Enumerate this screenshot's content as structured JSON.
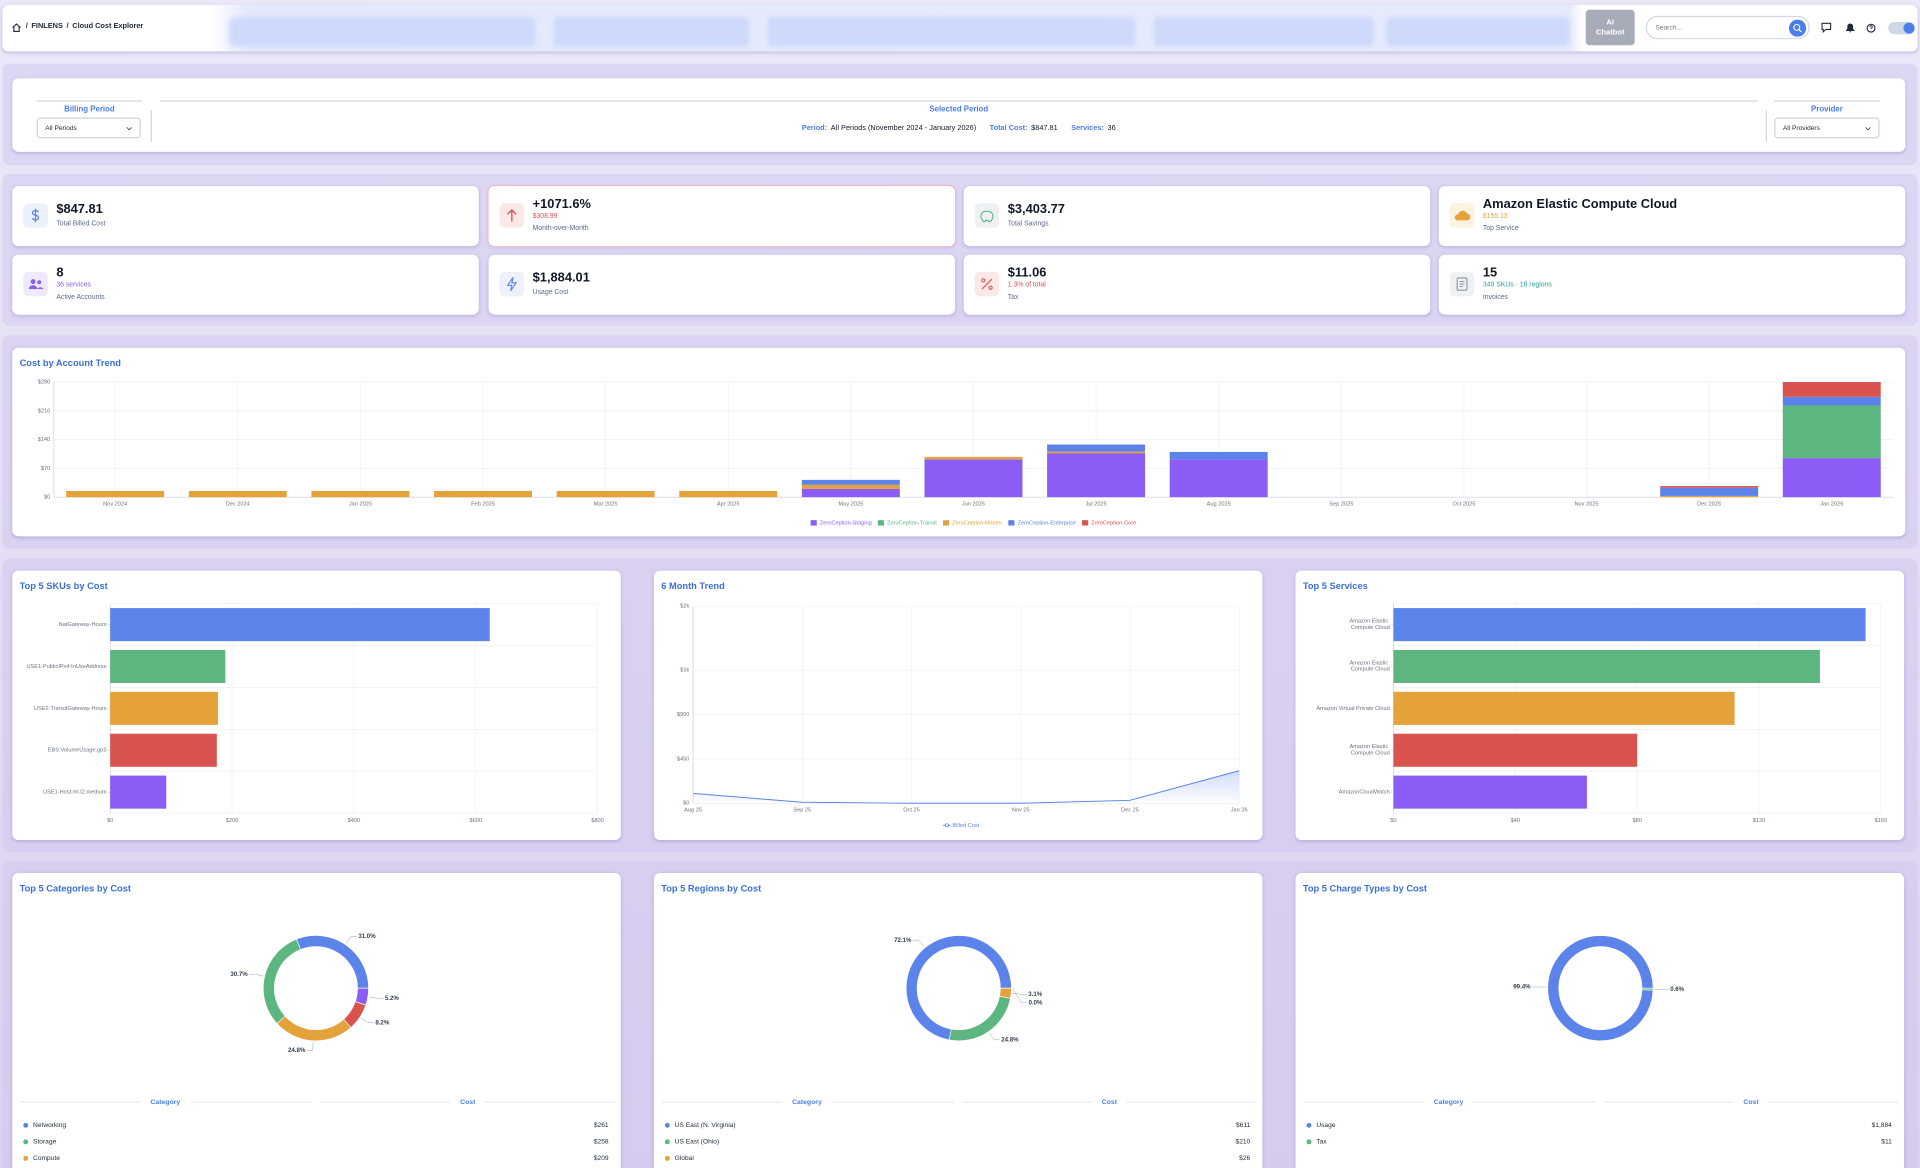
{
  "header": {
    "breadcrumb": [
      "FINLENS",
      "Cloud Cost Explorer"
    ],
    "separator": "/",
    "ai_button": "AI Chatbot",
    "search_placeholder": "Search..."
  },
  "filters": {
    "billing_period": {
      "label": "Billing Period",
      "value": "All Periods"
    },
    "selected_period": {
      "label": "Selected Period",
      "period_label": "Period:",
      "period_value": "All Periods (November 2024 - January 2026)",
      "total_cost_label": "Total Cost:",
      "total_cost_value": "$847.81",
      "services_label": "Services:",
      "services_value": "36"
    },
    "provider": {
      "label": "Provider",
      "value": "All Providers"
    }
  },
  "kpis": [
    {
      "value": "$847.81",
      "label": "Total Billed Cost"
    },
    {
      "value": "+1071.6%",
      "sub": "$308.99",
      "label": "Month-over-Month"
    },
    {
      "value": "$3,403.77",
      "label": "Total Savings"
    },
    {
      "value": "Amazon Elastic Compute Cloud",
      "sub": "$155.13",
      "label": "Top Service"
    },
    {
      "value": "8",
      "sub": "36 services",
      "label": "Active Accounts"
    },
    {
      "value": "$1,884.01",
      "label": "Usage Cost"
    },
    {
      "value": "$11.06",
      "sub": "1.3% of total",
      "label": "Tax"
    },
    {
      "value": "15",
      "sub": "349 SKUs · 18 regions",
      "label": "Invoices"
    }
  ],
  "chart_data": [
    {
      "type": "bar",
      "stacked": true,
      "title": "Cost by Account Trend",
      "grid": true,
      "categories": [
        "Nov 2024",
        "Dec 2024",
        "Jan 2025",
        "Feb 2025",
        "Mar 2025",
        "Apr 2025",
        "May 2025",
        "Jun 2025",
        "Jul 2025",
        "Aug 2025",
        "Sep 2025",
        "Oct 2025",
        "Nov 2025",
        "Dec 2025",
        "Jan 2026"
      ],
      "ylim": [
        0,
        280
      ],
      "yticks": [
        {
          "value": 0,
          "label": "$0"
        },
        {
          "value": 70,
          "label": "$70"
        },
        {
          "value": 140,
          "label": "$140"
        },
        {
          "value": 210,
          "label": "$210"
        },
        {
          "value": 280,
          "label": "$280"
        }
      ],
      "series": [
        {
          "name": "ZeroCeption-Staging",
          "color": "#8b5cf6",
          "values": [
            0,
            0,
            0,
            0,
            0,
            0,
            20,
            92,
            107,
            92,
            0,
            0,
            0,
            0,
            95
          ]
        },
        {
          "name": "ZeroCeption-Transit",
          "color": "#5db57f",
          "values": [
            0,
            0,
            0,
            0,
            0,
            0,
            0,
            0,
            0,
            0,
            0,
            0,
            0,
            0,
            128
          ]
        },
        {
          "name": "ZeroCeption-Master",
          "color": "#e5a23b",
          "values": [
            15,
            15,
            15,
            15,
            15,
            15,
            10,
            6,
            4,
            0,
            0,
            0,
            0,
            3,
            0
          ]
        },
        {
          "name": "ZeroCeption-Enterprise",
          "color": "#5b83ea",
          "values": [
            0,
            0,
            0,
            0,
            0,
            0,
            12,
            0,
            17,
            18,
            0,
            0,
            0,
            20,
            21
          ]
        },
        {
          "name": "ZeroCeption-Core",
          "color": "#d9534f",
          "values": [
            0,
            0,
            0,
            0,
            0,
            0,
            0,
            0,
            0,
            0,
            0,
            0,
            0,
            4,
            36
          ]
        }
      ]
    },
    {
      "type": "hbar",
      "title": "Top 5 SKUs by Cost",
      "grid": true,
      "categories": [
        "NatGateway-Hours",
        "USE1-PublicIPv4:InUseAddress",
        "USE2-TransitGateway-Hours",
        "EBS:VolumeUsage.gp3",
        "USE1-Host:ml.t2.medium"
      ],
      "values": [
        623,
        189,
        177,
        175,
        92
      ],
      "colors": [
        "#5b83ea",
        "#5db57f",
        "#e5a23b",
        "#d9534f",
        "#8b5cf6"
      ],
      "xlim": [
        0,
        800
      ],
      "xticks": [
        {
          "value": 0,
          "label": "$0"
        },
        {
          "value": 200,
          "label": "$200"
        },
        {
          "value": 400,
          "label": "$400"
        },
        {
          "value": 600,
          "label": "$600"
        },
        {
          "value": 800,
          "label": "$800"
        }
      ]
    },
    {
      "type": "line",
      "title": "6 Month Trend",
      "grid": true,
      "categories": [
        "Aug 25",
        "Sep 25",
        "Oct 25",
        "Nov 25",
        "Dec 25",
        "Jan 26"
      ],
      "ylim": [
        0,
        2000
      ],
      "yticks": [
        {
          "value": 0,
          "label": "$0"
        },
        {
          "value": 450,
          "label": "$450"
        },
        {
          "value": 900,
          "label": "$900"
        },
        {
          "value": 1350,
          "label": "$1k"
        },
        {
          "value": 2000,
          "label": "$2k"
        }
      ],
      "series": [
        {
          "name": "Billed Cost",
          "color": "#5b83ea",
          "values": [
            100,
            10,
            0,
            0,
            30,
            330
          ]
        }
      ]
    },
    {
      "type": "hbar",
      "title": "Top 5 Services",
      "grid": true,
      "categories": [
        "Amazon Elastic Compute Cloud",
        "Amazon Elastic Compute Cloud",
        "Amazon Virtual Private Cloud",
        "Amazon Elastic Compute Cloud",
        "AmazonCloudWatch"
      ],
      "values": [
        155,
        140,
        112,
        80,
        63.5
      ],
      "colors": [
        "#5b83ea",
        "#5db57f",
        "#e5a23b",
        "#d9534f",
        "#8b5cf6"
      ],
      "xlim": [
        0,
        160
      ],
      "xticks": [
        {
          "value": 0,
          "label": "$0"
        },
        {
          "value": 40,
          "label": "$40"
        },
        {
          "value": 80,
          "label": "$80"
        },
        {
          "value": 120,
          "label": "$120"
        },
        {
          "value": 160,
          "label": "$160"
        }
      ]
    },
    {
      "type": "doughnut",
      "title": "Top 5 Categories by Cost",
      "categories": [
        "Networking",
        "Storage",
        "Compute",
        null,
        null
      ],
      "values": [
        31.0,
        30.7,
        24.8,
        8.2,
        5.2
      ],
      "value_labels": [
        "31.0%",
        "30.7%",
        "24.8%",
        "8.2%",
        "5.2%"
      ],
      "colors": [
        "#5b83ea",
        "#5db57f",
        "#e5a23b",
        "#d9534f",
        "#8b5cf6"
      ],
      "table": {
        "headers": [
          "Category",
          "Cost"
        ],
        "rows": [
          [
            "Networking",
            "$261"
          ],
          [
            "Storage",
            "$258"
          ],
          [
            "Compute",
            "$209"
          ]
        ]
      }
    },
    {
      "type": "doughnut",
      "title": "Top 5 Regions by Cost",
      "categories": [
        "US East (N. Virginia)",
        "US East (Ohio)",
        "Global",
        null
      ],
      "values": [
        72.1,
        24.8,
        3.1,
        0.0
      ],
      "value_labels": [
        "72.1%",
        "24.8%",
        "3.1%",
        "0.0%"
      ],
      "colors": [
        "#5b83ea",
        "#5db57f",
        "#e5a23b",
        "#d9534f"
      ],
      "table": {
        "headers": [
          "Category",
          "Cost"
        ],
        "rows": [
          [
            "US East (N. Virginia)",
            "$611"
          ],
          [
            "US East (Ohio)",
            "$210"
          ],
          [
            "Global",
            "$26"
          ]
        ]
      }
    },
    {
      "type": "doughnut",
      "title": "Top 5 Charge Types by Cost",
      "categories": [
        "Usage",
        "Tax"
      ],
      "values": [
        99.4,
        0.6
      ],
      "value_labels": [
        "99.4%",
        "0.6%"
      ],
      "colors": [
        "#5b83ea",
        "#5db57f"
      ],
      "table": {
        "headers": [
          "Category",
          "Cost"
        ],
        "rows": [
          [
            "Usage",
            "$1,884"
          ],
          [
            "Tax",
            "$11"
          ]
        ]
      }
    }
  ]
}
